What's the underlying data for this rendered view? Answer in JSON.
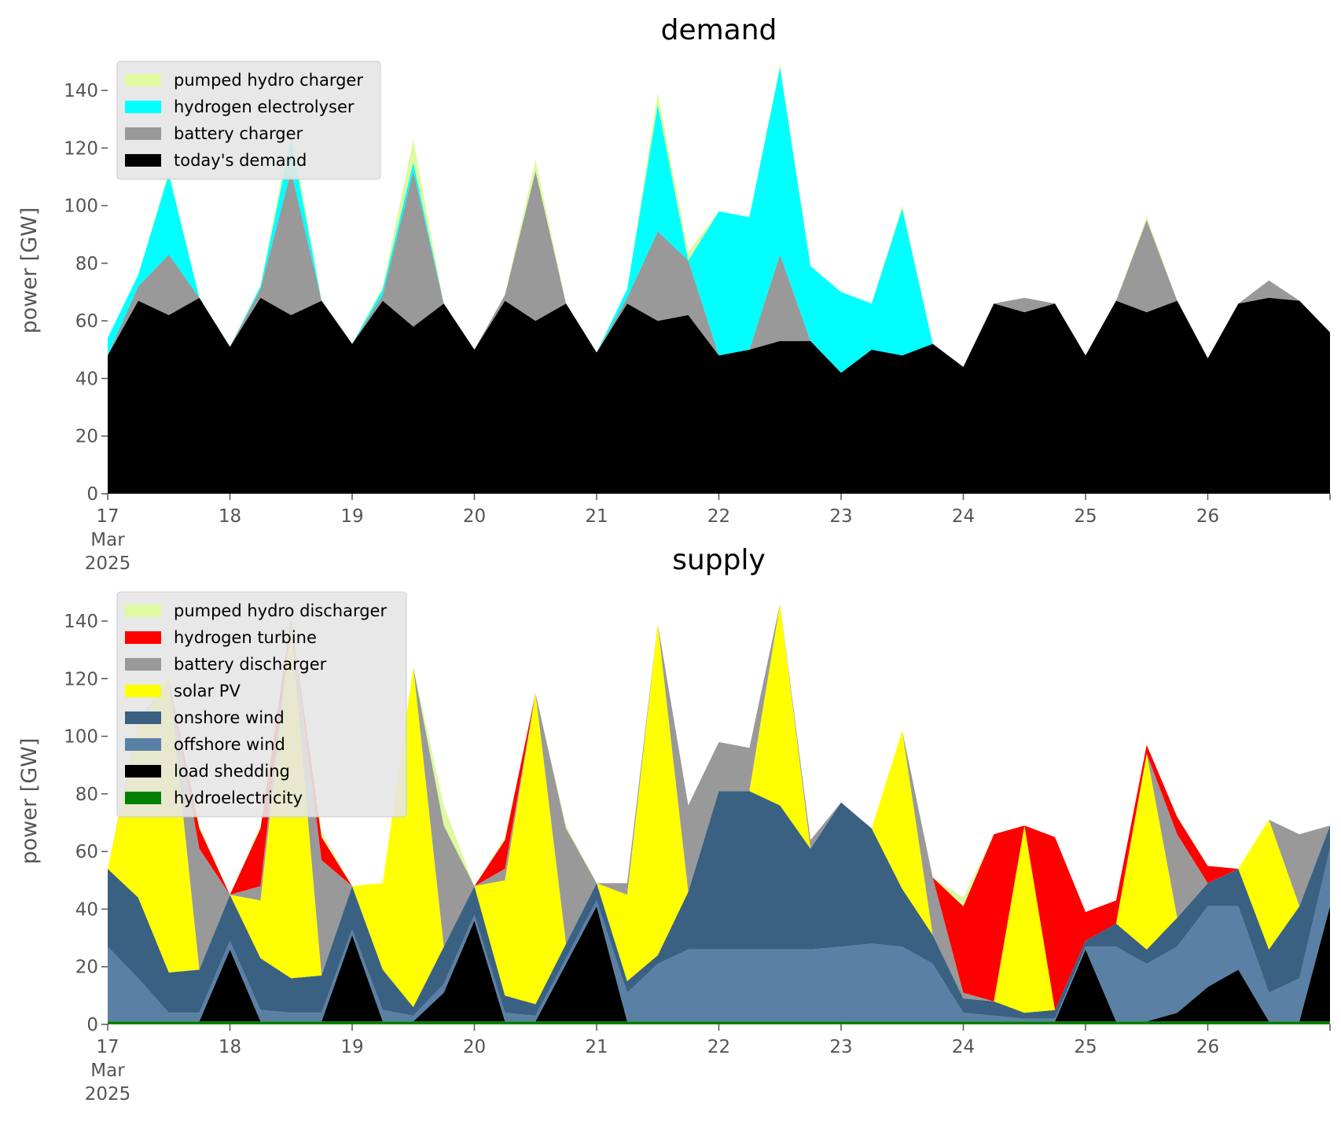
{
  "chart_data": [
    {
      "type": "area",
      "title": "demand",
      "xlabel": "",
      "ylabel": "power [GW]",
      "xlim": [
        "2025-03-17",
        "2025-03-27"
      ],
      "ylim": [
        0,
        155
      ],
      "yticks": [
        0,
        20,
        40,
        60,
        80,
        100,
        120,
        140
      ],
      "xticks": [
        {
          "label": "17",
          "sub1": "Mar",
          "sub2": "2025"
        },
        {
          "label": "18"
        },
        {
          "label": "19"
        },
        {
          "label": "20"
        },
        {
          "label": "21"
        },
        {
          "label": "22"
        },
        {
          "label": "23"
        },
        {
          "label": "24"
        },
        {
          "label": "25"
        },
        {
          "label": "26"
        }
      ],
      "legend_position": "top-left",
      "stacked": true,
      "x": [
        "17.00",
        "17.25",
        "17.50",
        "17.75",
        "18.00",
        "18.25",
        "18.50",
        "18.75",
        "19.00",
        "19.25",
        "19.50",
        "19.75",
        "20.00",
        "20.25",
        "20.50",
        "20.75",
        "21.00",
        "21.25",
        "21.50",
        "21.75",
        "22.00",
        "22.25",
        "22.50",
        "22.75",
        "23.00",
        "23.25",
        "23.50",
        "23.75",
        "24.00",
        "24.25",
        "24.50",
        "24.75",
        "25.00",
        "25.25",
        "25.50",
        "25.75",
        "26.00",
        "26.25",
        "26.50",
        "26.75",
        "27.00"
      ],
      "series": [
        {
          "name": "today's demand",
          "color": "#000000",
          "values": [
            48,
            67,
            62,
            68,
            51,
            68,
            62,
            67,
            52,
            67,
            58,
            66,
            50,
            67,
            60,
            66,
            49,
            66,
            60,
            62,
            48,
            50,
            53,
            53,
            42,
            50,
            48,
            52,
            44,
            66,
            63,
            66,
            48,
            67,
            63,
            67,
            47,
            66,
            68,
            67,
            56
          ]
        },
        {
          "name": "battery charger",
          "color": "#999999",
          "values": [
            0,
            5,
            21,
            0,
            0,
            3,
            50,
            0,
            0,
            2,
            54,
            0,
            0,
            2,
            52,
            0,
            0,
            2,
            31,
            19,
            0,
            0,
            30,
            0,
            0,
            0,
            0,
            0,
            0,
            0,
            5,
            0,
            0,
            0,
            32,
            0,
            0,
            0,
            6,
            0,
            0
          ]
        },
        {
          "name": "hydrogen electrolyser",
          "color": "#00ffff",
          "values": [
            6,
            4,
            28,
            0,
            0,
            1,
            11,
            0,
            0,
            2,
            3,
            0,
            0,
            0,
            0,
            0,
            0,
            3,
            44,
            0,
            50,
            46,
            65,
            26,
            28,
            16,
            51,
            0,
            0,
            0,
            0,
            0,
            0,
            0,
            0,
            0,
            0,
            0,
            0,
            0,
            0
          ]
        },
        {
          "name": "pumped hydro charger",
          "color": "#ddfaa0",
          "values": [
            0,
            0,
            1,
            0,
            0,
            0,
            4,
            0,
            0,
            1,
            8,
            0,
            0,
            0,
            4,
            0,
            0,
            0,
            4,
            3,
            0,
            0,
            1,
            0,
            0,
            0,
            1,
            0,
            0,
            0,
            0,
            0,
            0,
            0,
            1,
            0,
            0,
            0,
            0,
            0,
            0
          ]
        }
      ]
    },
    {
      "type": "area",
      "title": "supply",
      "xlabel": "",
      "ylabel": "power [GW]",
      "xlim": [
        "2025-03-17",
        "2025-03-27"
      ],
      "ylim": [
        0,
        155
      ],
      "yticks": [
        0,
        20,
        40,
        60,
        80,
        100,
        120,
        140
      ],
      "xticks": [
        {
          "label": "17",
          "sub1": "Mar",
          "sub2": "2025"
        },
        {
          "label": "18"
        },
        {
          "label": "19"
        },
        {
          "label": "20"
        },
        {
          "label": "21"
        },
        {
          "label": "22"
        },
        {
          "label": "23"
        },
        {
          "label": "24"
        },
        {
          "label": "25"
        },
        {
          "label": "26"
        }
      ],
      "legend_position": "top-left",
      "stacked": true,
      "x": [
        "17.00",
        "17.25",
        "17.50",
        "17.75",
        "18.00",
        "18.25",
        "18.50",
        "18.75",
        "19.00",
        "19.25",
        "19.50",
        "19.75",
        "20.00",
        "20.25",
        "20.50",
        "20.75",
        "21.00",
        "21.25",
        "21.50",
        "21.75",
        "22.00",
        "22.25",
        "22.50",
        "22.75",
        "23.00",
        "23.25",
        "23.50",
        "23.75",
        "24.00",
        "24.25",
        "24.50",
        "24.75",
        "25.00",
        "25.25",
        "25.50",
        "25.75",
        "26.00",
        "26.25",
        "26.50",
        "26.75",
        "27.00"
      ],
      "series": [
        {
          "name": "hydroelectricity",
          "color": "#008000",
          "values": [
            1,
            1,
            1,
            1,
            1,
            1,
            1,
            1,
            1,
            1,
            1,
            1,
            1,
            1,
            1,
            1,
            1,
            1,
            1,
            1,
            1,
            1,
            1,
            1,
            1,
            1,
            1,
            1,
            1,
            1,
            1,
            1,
            1,
            1,
            1,
            1,
            1,
            1,
            1,
            1,
            1
          ]
        },
        {
          "name": "load shedding",
          "color": "#000000",
          "values": [
            0,
            0,
            0,
            0,
            25,
            0,
            0,
            0,
            30,
            0,
            0,
            10,
            35,
            0,
            0,
            20,
            40,
            0,
            0,
            0,
            0,
            0,
            0,
            0,
            0,
            0,
            0,
            0,
            0,
            0,
            0,
            0,
            25,
            0,
            0,
            3,
            12,
            18,
            0,
            0,
            40
          ]
        },
        {
          "name": "offshore wind",
          "color": "#5b80a5",
          "values": [
            26,
            15,
            3,
            3,
            3,
            4,
            3,
            3,
            2,
            4,
            2,
            3,
            2,
            3,
            2,
            2,
            2,
            10,
            20,
            25,
            25,
            25,
            25,
            25,
            26,
            27,
            26,
            20,
            3,
            2,
            1,
            1,
            1,
            26,
            20,
            23,
            28,
            22,
            10,
            15,
            20
          ]
        },
        {
          "name": "onshore wind",
          "color": "#3a6182",
          "values": [
            27,
            28,
            14,
            15,
            16,
            18,
            12,
            13,
            15,
            14,
            3,
            13,
            10,
            6,
            4,
            5,
            6,
            4,
            3,
            20,
            55,
            55,
            50,
            35,
            50,
            40,
            20,
            10,
            5,
            5,
            2,
            3,
            2,
            8,
            5,
            10,
            8,
            13,
            15,
            25,
            8
          ]
        },
        {
          "name": "solar PV",
          "color": "#ffff00",
          "values": [
            0,
            60,
            102,
            0,
            0,
            20,
            122,
            0,
            0,
            30,
            118,
            0,
            0,
            40,
            108,
            0,
            0,
            30,
            115,
            0,
            0,
            0,
            70,
            0,
            0,
            0,
            55,
            0,
            0,
            0,
            65,
            0,
            0,
            0,
            68,
            0,
            0,
            0,
            45,
            0,
            0
          ]
        },
        {
          "name": "battery discharger",
          "color": "#999999",
          "values": [
            0,
            1,
            0,
            42,
            0,
            5,
            3,
            40,
            0,
            0,
            0,
            42,
            0,
            4,
            0,
            40,
            0,
            4,
            0,
            30,
            17,
            15,
            0,
            3,
            0,
            0,
            0,
            20,
            2,
            0,
            0,
            0,
            0,
            0,
            0,
            29,
            0,
            0,
            0,
            25,
            0
          ]
        },
        {
          "name": "hydrogen turbine",
          "color": "#ff0000",
          "values": [
            0,
            0,
            0,
            7,
            0,
            20,
            0,
            8,
            0,
            0,
            0,
            0,
            0,
            10,
            0,
            0,
            0,
            0,
            0,
            0,
            0,
            0,
            0,
            0,
            0,
            0,
            0,
            0,
            30,
            58,
            0,
            60,
            10,
            8,
            3,
            6,
            6,
            0,
            0,
            0,
            0
          ]
        },
        {
          "name": "pumped hydro discharger",
          "color": "#ddfaa0",
          "values": [
            0,
            0,
            0,
            1,
            0,
            1,
            0,
            2,
            0,
            0,
            0,
            7,
            0,
            1,
            0,
            1,
            0,
            0,
            0,
            0,
            0,
            0,
            0,
            0,
            0,
            0,
            0,
            0,
            3,
            0,
            0,
            0,
            0,
            0,
            0,
            0,
            0,
            0,
            0,
            0,
            0
          ]
        }
      ]
    }
  ]
}
